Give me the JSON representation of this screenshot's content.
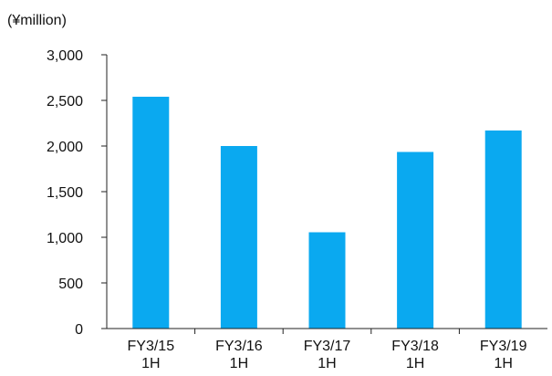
{
  "chart_data": {
    "type": "bar",
    "unit_label": "(¥million)",
    "categories": [
      [
        "FY3/15",
        "1H"
      ],
      [
        "FY3/16",
        "1H"
      ],
      [
        "FY3/17",
        "1H"
      ],
      [
        "FY3/18",
        "1H"
      ],
      [
        "FY3/19",
        "1H"
      ]
    ],
    "values": [
      2540,
      2000,
      1055,
      1935,
      2170
    ],
    "ylim": [
      0,
      3000
    ],
    "yticks": [
      0,
      500,
      1000,
      1500,
      2000,
      2500,
      3000
    ],
    "ytick_labels": [
      "0",
      "500",
      "1,000",
      "1,500",
      "2,000",
      "2,500",
      "3,000"
    ],
    "grid": false,
    "bar_color": "#0aa9f0",
    "axis_color": "#222222"
  }
}
